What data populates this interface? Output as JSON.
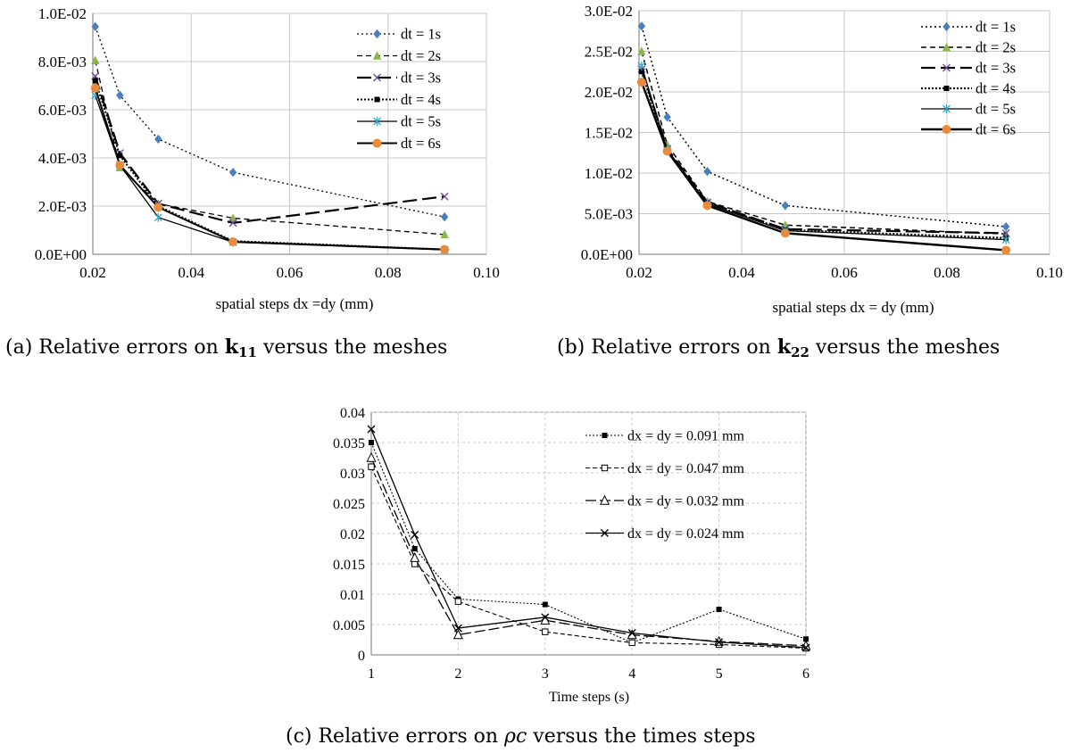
{
  "captions": {
    "a": {
      "prefix": "(a)  Relative errors on ",
      "sym": "k",
      "sub": "11",
      "suffix": " versus the meshes"
    },
    "b": {
      "prefix": "(b)  Relative errors on ",
      "sym": "k",
      "sub": "22",
      "suffix": " versus the meshes"
    },
    "c": {
      "prefix": "(c)  Relative errors on ",
      "sym": "ρc",
      "suffix": " versus the times steps"
    }
  },
  "chart_data": [
    {
      "type": "line",
      "xlabel": "spatial steps dx =dy  (mm)",
      "ylabel": "",
      "xlim": [
        0.02,
        0.1
      ],
      "ylim": [
        0,
        0.01
      ],
      "xticks": [
        0.02,
        0.04,
        0.06,
        0.08,
        0.1
      ],
      "xtick_labels": [
        "0.02",
        "0.04",
        "0.06",
        "0.08",
        "0.10"
      ],
      "yticks": [
        0,
        0.002,
        0.004,
        0.006,
        0.008,
        0.01
      ],
      "ytick_labels": [
        "0.0E+00",
        "2.0E-03",
        "4.0E-03",
        "6.0E-03",
        "8.0E-03",
        "1.0E-02"
      ],
      "grid": true,
      "legend_position": "top-right",
      "x": [
        0.0205,
        0.0255,
        0.0333,
        0.0485,
        0.0915
      ],
      "series": [
        {
          "name": "dt = 1s",
          "values": [
            0.00945,
            0.0066,
            0.00478,
            0.0034,
            0.00155
          ],
          "color": "#4a7ebf",
          "dash": "2,3",
          "width": 1.3,
          "marker": "diamond"
        },
        {
          "name": "dt = 2s",
          "values": [
            0.00805,
            0.0036,
            0.0021,
            0.0015,
            0.00082
          ],
          "color": "#8cb44a",
          "dash": "6,4",
          "width": 1.3,
          "marker": "triangle"
        },
        {
          "name": "dt = 3s",
          "values": [
            0.0074,
            0.0042,
            0.0021,
            0.0013,
            0.0024
          ],
          "color": "#6b4f9e",
          "dash": "16,6",
          "width": 2.2,
          "marker": "x"
        },
        {
          "name": "dt = 4s",
          "values": [
            0.0072,
            0.0041,
            0.002,
            0.00055,
            0.0002
          ],
          "color": "#000000",
          "dash": "2,2",
          "width": 2.0,
          "marker": "square"
        },
        {
          "name": "dt = 5s",
          "values": [
            0.0066,
            0.0037,
            0.00153,
            0.0005,
            0.00018
          ],
          "color": "#3aa7c8",
          "dash": "",
          "width": 1.3,
          "marker": "star"
        },
        {
          "name": "dt = 6s",
          "values": [
            0.0069,
            0.0037,
            0.00195,
            0.00052,
            0.0002
          ],
          "color": "#e88b3c",
          "dash": "",
          "width": 2.0,
          "marker": "circle"
        }
      ]
    },
    {
      "type": "line",
      "xlabel": "spatial steps dx = dy (mm)",
      "ylabel": "",
      "xlim": [
        0.02,
        0.1
      ],
      "ylim": [
        0,
        0.03
      ],
      "xticks": [
        0.02,
        0.04,
        0.06,
        0.08,
        0.1
      ],
      "xtick_labels": [
        "0.02",
        "0.04",
        "0.06",
        "0.08",
        "0.10"
      ],
      "yticks": [
        0,
        0.005,
        0.01,
        0.015,
        0.02,
        0.025,
        0.03
      ],
      "ytick_labels": [
        "0.0E+00",
        "5.0E-03",
        "1.0E-02",
        "1.5E-02",
        "2.0E-02",
        "2.5E-02",
        "3.0E-02"
      ],
      "grid": true,
      "legend_position": "top-right",
      "x": [
        0.0205,
        0.0255,
        0.0333,
        0.0485,
        0.0915
      ],
      "series": [
        {
          "name": "dt = 1s",
          "values": [
            0.0281,
            0.0169,
            0.0102,
            0.006,
            0.0034
          ],
          "color": "#4a7ebf",
          "dash": "2,3",
          "width": 1.5,
          "marker": "diamond"
        },
        {
          "name": "dt = 2s",
          "values": [
            0.025,
            0.0135,
            0.0065,
            0.0036,
            0.0025
          ],
          "color": "#8cb44a",
          "dash": "6,4",
          "width": 1.5,
          "marker": "triangle"
        },
        {
          "name": "dt = 3s",
          "values": [
            0.0228,
            0.013,
            0.0064,
            0.0031,
            0.0026
          ],
          "color": "#6b4f9e",
          "dash": "16,6",
          "width": 2.2,
          "marker": "x"
        },
        {
          "name": "dt = 4s",
          "values": [
            0.0225,
            0.0128,
            0.0063,
            0.003,
            0.002
          ],
          "color": "#000000",
          "dash": "2,2",
          "width": 2.2,
          "marker": "square"
        },
        {
          "name": "dt = 5s",
          "values": [
            0.0232,
            0.0129,
            0.0062,
            0.0029,
            0.0018
          ],
          "color": "#3aa7c8",
          "dash": "",
          "width": 1.3,
          "marker": "star"
        },
        {
          "name": "dt = 6s",
          "values": [
            0.0212,
            0.0127,
            0.006,
            0.0026,
            0.0005
          ],
          "color": "#e88b3c",
          "dash": "",
          "width": 2.4,
          "marker": "circle"
        }
      ]
    },
    {
      "type": "line",
      "xlabel": "Time steps (s)",
      "ylabel": "",
      "xlim": [
        1,
        6
      ],
      "ylim": [
        0,
        0.04
      ],
      "xticks": [
        1,
        2,
        3,
        4,
        5,
        6
      ],
      "xtick_labels": [
        "1",
        "2",
        "3",
        "4",
        "5",
        "6"
      ],
      "yticks": [
        0,
        0.005,
        0.01,
        0.015,
        0.02,
        0.025,
        0.03,
        0.035,
        0.04
      ],
      "ytick_labels": [
        "0",
        "0.005",
        "0.01",
        "0.015",
        "0.02",
        "0.025",
        "0.03",
        "0.035",
        "0.04"
      ],
      "grid": true,
      "legend_position": "top-right",
      "x": [
        1,
        1.5,
        2,
        3,
        4,
        5,
        6
      ],
      "series": [
        {
          "name": "dx = dy = 0.091 mm",
          "values": [
            0.035,
            0.0175,
            0.0092,
            0.0083,
            0.002,
            0.0075,
            0.0026
          ],
          "color": "#000000",
          "dash": "2,2",
          "width": 1.1,
          "marker": "square"
        },
        {
          "name": "dx = dy = 0.047 mm",
          "values": [
            0.031,
            0.015,
            0.0088,
            0.0038,
            0.002,
            0.0017,
            0.0011
          ],
          "color": "#000000",
          "dash": "5,3",
          "width": 1.1,
          "marker": "square-open"
        },
        {
          "name": "dx = dy = 0.032 mm",
          "values": [
            0.0325,
            0.016,
            0.0033,
            0.0057,
            0.0033,
            0.0022,
            0.0015
          ],
          "color": "#000000",
          "dash": "12,4",
          "width": 1.3,
          "marker": "triangle-open"
        },
        {
          "name": "dx = dy = 0.024 mm",
          "values": [
            0.0372,
            0.0198,
            0.0044,
            0.0062,
            0.0036,
            0.0021,
            0.0012
          ],
          "color": "#000000",
          "dash": "",
          "width": 1.3,
          "marker": "x"
        }
      ]
    }
  ]
}
